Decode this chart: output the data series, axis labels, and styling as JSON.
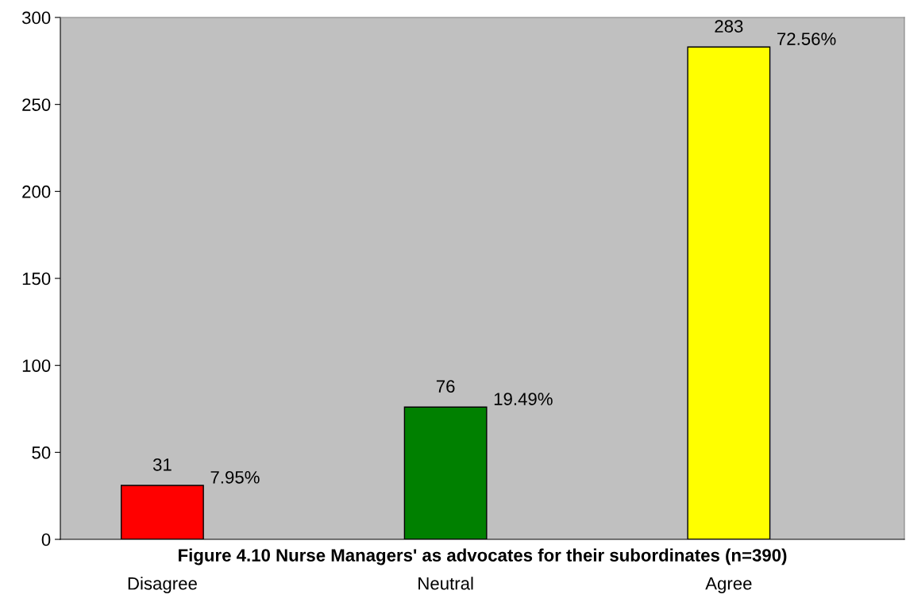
{
  "chart_data": {
    "type": "bar",
    "title": "Figure 4.10 Nurse Managers' as advocates for their subordinates (n=390)",
    "categories": [
      "Disagree",
      "Neutral",
      "Agree"
    ],
    "colors": [
      "#ff0000",
      "#008000",
      "#ffff00"
    ],
    "values": [
      31,
      76,
      283
    ],
    "data_labels": true,
    "annotations": [
      {
        "text": "7.95%",
        "x": "Disagree",
        "y": 31
      },
      {
        "text": "19.49%",
        "x": "Neutral",
        "y": 76
      },
      {
        "text": "72.56%",
        "x": "Agree",
        "y": 283
      }
    ],
    "ylim": [
      0,
      300
    ],
    "yticks": [
      0,
      50,
      100,
      150,
      200,
      250,
      300
    ],
    "grid": false
  }
}
